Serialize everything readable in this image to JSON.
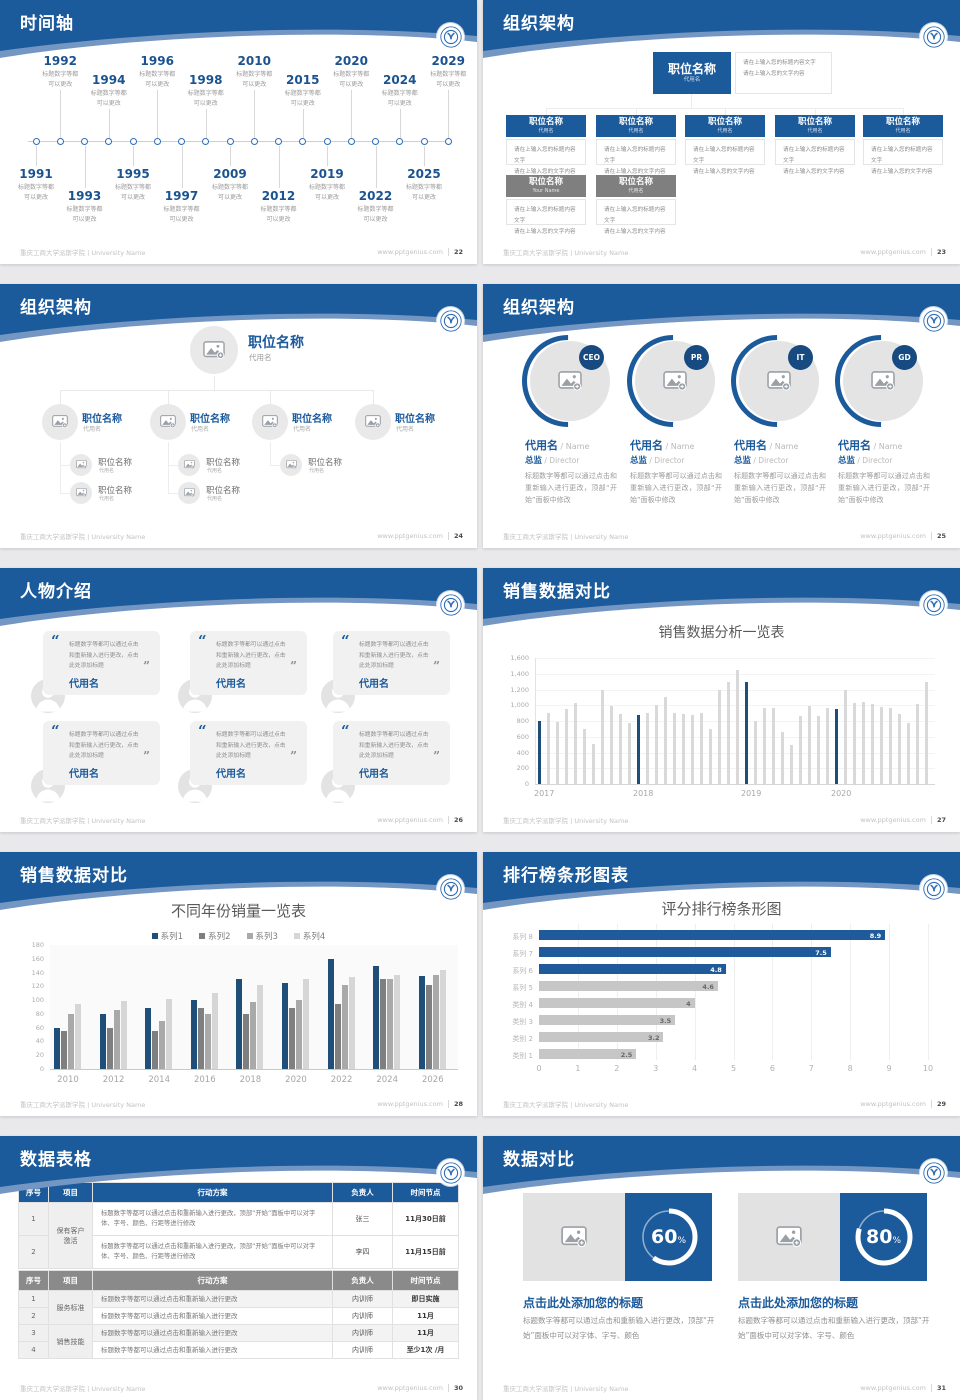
{
  "footer": {
    "left": "重庆工商大学派斯学院 | University Name",
    "site": "www.pptgenius.com"
  },
  "brand": {
    "primary": "#1b5a9b",
    "accent_light": "#7496c3",
    "navy": "#1f4e79",
    "gray_box": "#7f7f7f"
  },
  "icons": {
    "quote_open": "“",
    "quote_close": "”"
  },
  "slides": {
    "timeline": {
      "title": "时间轴",
      "page_no": "22",
      "caption": [
        "标题数字等都",
        "可以更改"
      ],
      "items": [
        {
          "year": "1991",
          "side": "bottom",
          "far": false
        },
        {
          "year": "1992",
          "side": "top",
          "far": true
        },
        {
          "year": "1993",
          "side": "bottom",
          "far": true
        },
        {
          "year": "1994",
          "side": "top",
          "far": false
        },
        {
          "year": "1995",
          "side": "bottom",
          "far": false
        },
        {
          "year": "1996",
          "side": "top",
          "far": true
        },
        {
          "year": "1997",
          "side": "bottom",
          "far": true
        },
        {
          "year": "1998",
          "side": "top",
          "far": false
        },
        {
          "year": "2009",
          "side": "bottom",
          "far": false
        },
        {
          "year": "2010",
          "side": "top",
          "far": true
        },
        {
          "year": "2012",
          "side": "bottom",
          "far": true
        },
        {
          "year": "2015",
          "side": "top",
          "far": false
        },
        {
          "year": "2019",
          "side": "bottom",
          "far": false
        },
        {
          "year": "2020",
          "side": "top",
          "far": true
        },
        {
          "year": "2022",
          "side": "bottom",
          "far": true
        },
        {
          "year": "2024",
          "side": "top",
          "far": false
        },
        {
          "year": "2025",
          "side": "bottom",
          "far": false
        },
        {
          "year": "2029",
          "side": "top",
          "far": true
        }
      ]
    },
    "org_boxes": {
      "title": "组织架构",
      "page_no": "23",
      "root": {
        "title": "职位名称",
        "sub": "代用名"
      },
      "desc": [
        "请在上输入您的标题内容文字",
        "请在上输入您的文字内容"
      ],
      "blue_row": [
        {
          "title": "职位名称",
          "sub": "代用名"
        },
        {
          "title": "职位名称",
          "sub": "代用名"
        },
        {
          "title": "职位名称",
          "sub": "代用名"
        },
        {
          "title": "职位名称",
          "sub": "代用名"
        },
        {
          "title": "职位名称",
          "sub": "代用名"
        }
      ],
      "gray_row": [
        {
          "title": "职位名称",
          "sub": "Your Name"
        },
        {
          "title": "职位名称",
          "sub": "代用名"
        }
      ]
    },
    "org_tree": {
      "title": "组织架构",
      "page_no": "24",
      "root": {
        "title": "职位名称",
        "sub": "代用名"
      },
      "nodes": [
        {
          "title": "职位名称",
          "sub": "代用名",
          "children": 2
        },
        {
          "title": "职位名称",
          "sub": "代用名",
          "children": 2
        },
        {
          "title": "职位名称",
          "sub": "代用名",
          "children": 1
        },
        {
          "title": "职位名称",
          "sub": "代用名",
          "children": 0
        }
      ],
      "child": {
        "title": "职位名称",
        "sub": "代用名"
      }
    },
    "org_members": {
      "title": "组织架构",
      "page_no": "25",
      "members": [
        {
          "badge": "CEO"
        },
        {
          "badge": "PR"
        },
        {
          "badge": "IT"
        },
        {
          "badge": "GD"
        }
      ],
      "name": "代用名",
      "name_en": "Name",
      "role": "总监",
      "role_en": "Director",
      "body": "标题数字等都可以通过点击和重新输入进行更改，顶部“开始”面板中修改"
    },
    "people": {
      "title": "人物介绍",
      "page_no": "26",
      "quote": "标题数字等都可以通过点击和重新输入进行更改，点击此处添加标题",
      "name": "代用名"
    },
    "sales_chart": {
      "title": "销售数据对比",
      "page_no": "27"
    },
    "yearly_chart": {
      "title": "销售数据对比",
      "page_no": "28"
    },
    "ranking_chart": {
      "title": "排行榜条形图表",
      "page_no": "29"
    },
    "tables": {
      "title": "数据表格",
      "page_no": "30",
      "header": [
        "序号",
        "项目",
        "行动方案",
        "负责人",
        "时间节点"
      ],
      "table1": {
        "rows": [
          {
            "no": "1",
            "project": "保有客户激活",
            "span": 2,
            "plan": "标题数字等都可以通过点击和重新输入进行更改，顶部“开始”面板中可以对字体、字号、颜色、行距等进行修改",
            "owner": "张三",
            "time": "11月30日前"
          },
          {
            "no": "2",
            "plan": "标题数字等都可以通过点击和重新输入进行更改，顶部“开始”面板中可以对字体、字号、颜色、行距等进行修改",
            "owner": "李四",
            "time": "11月15日前"
          }
        ]
      },
      "table2": {
        "rows": [
          {
            "no": "1",
            "project": "服务标准",
            "span": 2,
            "plan": "标题数字等都可以通过点击和重新输入进行更改",
            "owner": "内训师",
            "time": "即日实施"
          },
          {
            "no": "2",
            "plan": "标题数字等都可以通过点击和重新输入进行更改",
            "owner": "内训师",
            "time": "11月"
          },
          {
            "no": "3",
            "project": "销售技能",
            "span": 2,
            "plan": "标题数字等都可以通过点击和重新输入进行更改",
            "owner": "内训师",
            "time": "11月"
          },
          {
            "no": "4",
            "plan": "标题数字等都可以通过点击和重新输入进行更改",
            "owner": "内训师",
            "time": "至少1次 /月"
          }
        ]
      }
    },
    "compare": {
      "title": "数据对比",
      "page_no": "31",
      "card_title": "点击此处添加您的标题",
      "card_body": "标题数字等都可以通过点击和重新输入进行更改，顶部“开始”面板中可以对字体、字号、颜色",
      "cards": [
        {
          "percent": 60
        },
        {
          "percent": 80
        }
      ]
    }
  },
  "chart_data": [
    {
      "slide": "27",
      "type": "bar",
      "title": "销售数据分析一览表",
      "xlabel": "",
      "ylabel": "",
      "ylim": [
        0,
        1600
      ],
      "yticks": [
        0,
        200,
        400,
        600,
        800,
        1000,
        1200,
        1400,
        1600
      ],
      "x_tick_labels": [
        "2017",
        "2018",
        "2019",
        "2020"
      ],
      "x_tick_positions": [
        0,
        11,
        23,
        33
      ],
      "values": [
        800,
        900,
        790,
        950,
        1030,
        700,
        510,
        1200,
        990,
        890,
        780,
        880,
        900,
        1000,
        1100,
        900,
        890,
        880,
        900,
        700,
        1200,
        1300,
        1450,
        1300,
        800,
        960,
        970,
        660,
        490,
        860,
        990,
        860,
        960,
        950,
        1200,
        1030,
        1040,
        1020,
        980,
        960,
        890,
        780,
        1010,
        1300
      ],
      "highlight_indices": [
        0,
        11,
        23,
        33
      ],
      "bar_color": "#d9d9d9",
      "highlight_color": "#1f4e79",
      "grid": true,
      "legend_position": "none"
    },
    {
      "slide": "28",
      "type": "bar",
      "title": "不同年份销量一览表",
      "categories": [
        "2010",
        "2012",
        "2014",
        "2016",
        "2018",
        "2020",
        "2022",
        "2024",
        "2026"
      ],
      "ylim": [
        0,
        180
      ],
      "yticks": [
        0,
        20,
        40,
        60,
        80,
        100,
        120,
        140,
        160,
        180
      ],
      "series": [
        {
          "name": "系列1",
          "color": "#1f4e79",
          "values": [
            60,
            80,
            88,
            100,
            130,
            125,
            160,
            150,
            135
          ]
        },
        {
          "name": "系列2",
          "color": "#7f7f7f",
          "values": [
            55,
            60,
            55,
            88,
            80,
            88,
            95,
            130,
            122
          ]
        },
        {
          "name": "系列3",
          "color": "#a9a9a9",
          "values": [
            80,
            86,
            70,
            80,
            97,
            100,
            122,
            130,
            136
          ]
        },
        {
          "name": "系列4",
          "color": "#d6d6d6",
          "values": [
            95,
            99,
            102,
            110,
            122,
            130,
            133,
            137,
            143
          ]
        }
      ],
      "grid": false,
      "legend_position": "top"
    },
    {
      "slide": "29",
      "type": "bar-horizontal",
      "title": "评分排行榜条形图",
      "categories": [
        "系列 8",
        "系列 7",
        "系列 6",
        "系列 5",
        "类别 4",
        "类别 3",
        "类别 2",
        "类别 1"
      ],
      "values": [
        8.9,
        7.5,
        4.8,
        4.6,
        4,
        3.5,
        3.2,
        2.5
      ],
      "colors": [
        "#1f5a9b",
        "#1f5a9b",
        "#1f5a9b",
        "#c6c6c6",
        "#c6c6c6",
        "#c6c6c6",
        "#c6c6c6",
        "#c6c6c6"
      ],
      "xlim": [
        0,
        10
      ],
      "xticks": [
        0,
        1,
        2,
        3,
        4,
        5,
        6,
        7,
        8,
        9,
        10
      ],
      "grid": true,
      "legend_position": "none"
    }
  ]
}
